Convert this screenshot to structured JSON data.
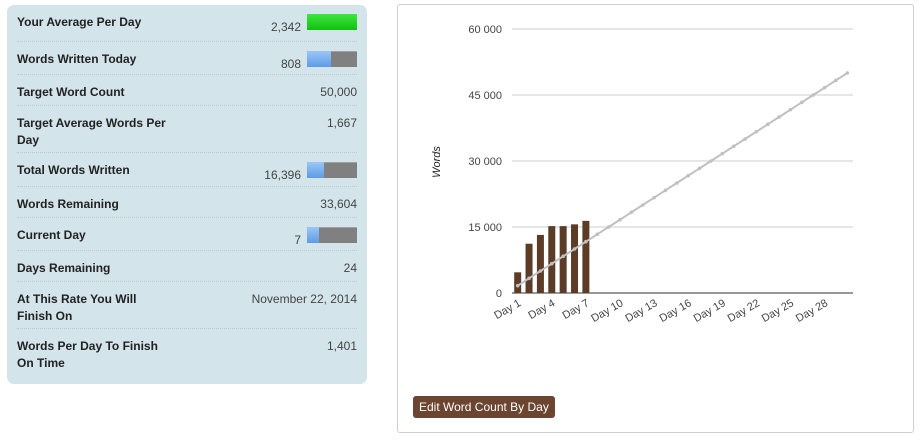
{
  "stats": [
    {
      "label": "Your Average Per Day",
      "value": "2,342",
      "bar": {
        "kind": "green",
        "fraction": 1.0
      }
    },
    {
      "label": "Words Written Today",
      "value": "808",
      "bar": {
        "kind": "blue",
        "fraction": 0.48
      }
    },
    {
      "label": "Target Word Count",
      "value": "50,000"
    },
    {
      "label": "Target Average Words Per Day",
      "value": "1,667"
    },
    {
      "label": "Total Words Written",
      "value": "16,396",
      "bar": {
        "kind": "blue",
        "fraction": 0.33
      }
    },
    {
      "label": "Words Remaining",
      "value": "33,604"
    },
    {
      "label": "Current Day",
      "value": "7",
      "bar": {
        "kind": "blue",
        "fraction": 0.23
      }
    },
    {
      "label": "Days Remaining",
      "value": "24"
    },
    {
      "label": "At This Rate You Will Finish On",
      "value": "November 22, 2014"
    },
    {
      "label": "Words Per Day To Finish On Time",
      "value": "1,401"
    }
  ],
  "edit_button_label": "Edit Word Count By Day",
  "colors": {
    "bar": "#5c3c27",
    "target_line": "#c0c0c0",
    "button": "#6b4530",
    "panel": "#d3e4ea"
  },
  "chart_data": {
    "type": "bar",
    "ylabel": "Words",
    "ylim": [
      0,
      60000
    ],
    "yticks": [
      0,
      15000,
      30000,
      45000,
      60000
    ],
    "ytick_labels": [
      "0",
      "15 000",
      "30 000",
      "45 000",
      "60 000"
    ],
    "xtick_labels": [
      "Day 1",
      "Day 4",
      "Day 7",
      "Day 10",
      "Day 13",
      "Day 16",
      "Day 19",
      "Day 22",
      "Day 25",
      "Day 28"
    ],
    "days": 30,
    "bar_values": [
      4700,
      11200,
      13200,
      15200,
      15200,
      15600,
      16396
    ],
    "target_line": {
      "start": 1667,
      "end": 50000
    }
  }
}
